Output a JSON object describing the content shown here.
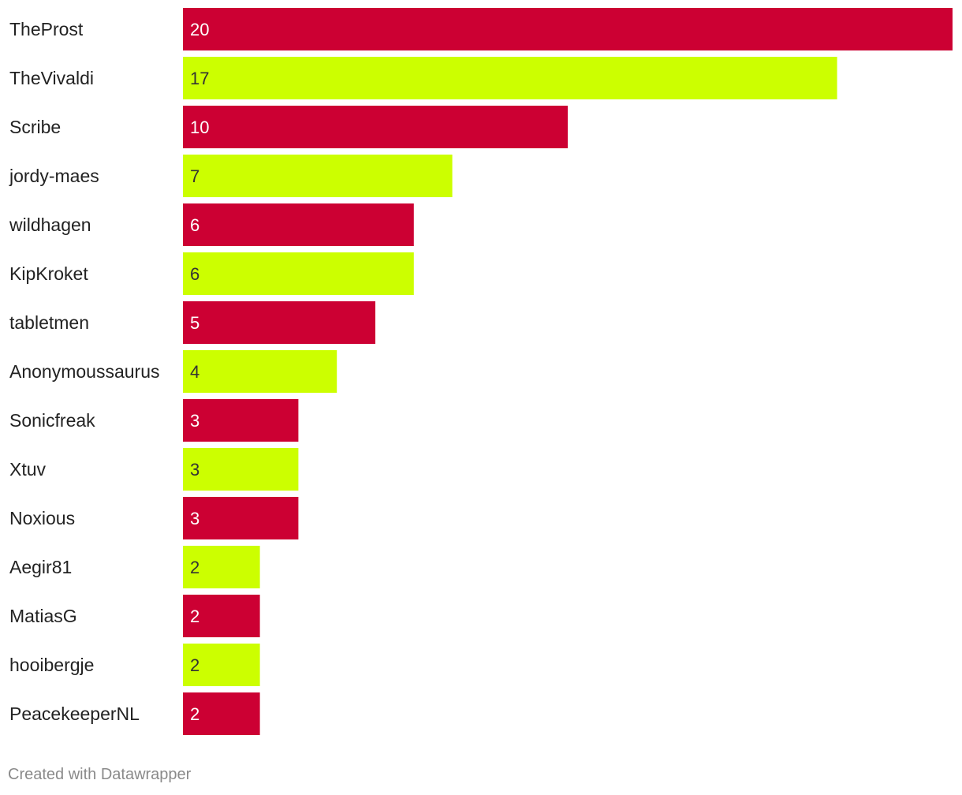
{
  "chart_data": {
    "type": "bar",
    "orientation": "horizontal",
    "categories": [
      "TheProst",
      "TheVivaldi",
      "Scribe",
      "jordy-maes",
      "wildhagen",
      "KipKroket",
      "tabletmen",
      "Anonymoussaurus",
      "Sonicfreak",
      "Xtuv",
      "Noxious",
      "Aegir81",
      "MatiasG",
      "hooibergje",
      "PeacekeeperNL"
    ],
    "values": [
      20,
      17,
      10,
      7,
      6,
      6,
      5,
      4,
      3,
      3,
      3,
      2,
      2,
      2,
      2
    ],
    "bar_colors": [
      "#cc0033",
      "#ccff00",
      "#cc0033",
      "#ccff00",
      "#cc0033",
      "#ccff00",
      "#cc0033",
      "#ccff00",
      "#cc0033",
      "#ccff00",
      "#cc0033",
      "#ccff00",
      "#cc0033",
      "#ccff00",
      "#cc0033"
    ],
    "label_colors": [
      "#ffffff",
      "#333333",
      "#ffffff",
      "#333333",
      "#ffffff",
      "#333333",
      "#ffffff",
      "#333333",
      "#ffffff",
      "#333333",
      "#ffffff",
      "#333333",
      "#ffffff",
      "#333333",
      "#ffffff"
    ],
    "xlim": [
      0,
      20
    ],
    "grid": false,
    "legend": "none",
    "data_labels": "inside-start",
    "title": "",
    "xlabel": "",
    "ylabel": ""
  },
  "footer": {
    "credit": "Created with Datawrapper"
  }
}
